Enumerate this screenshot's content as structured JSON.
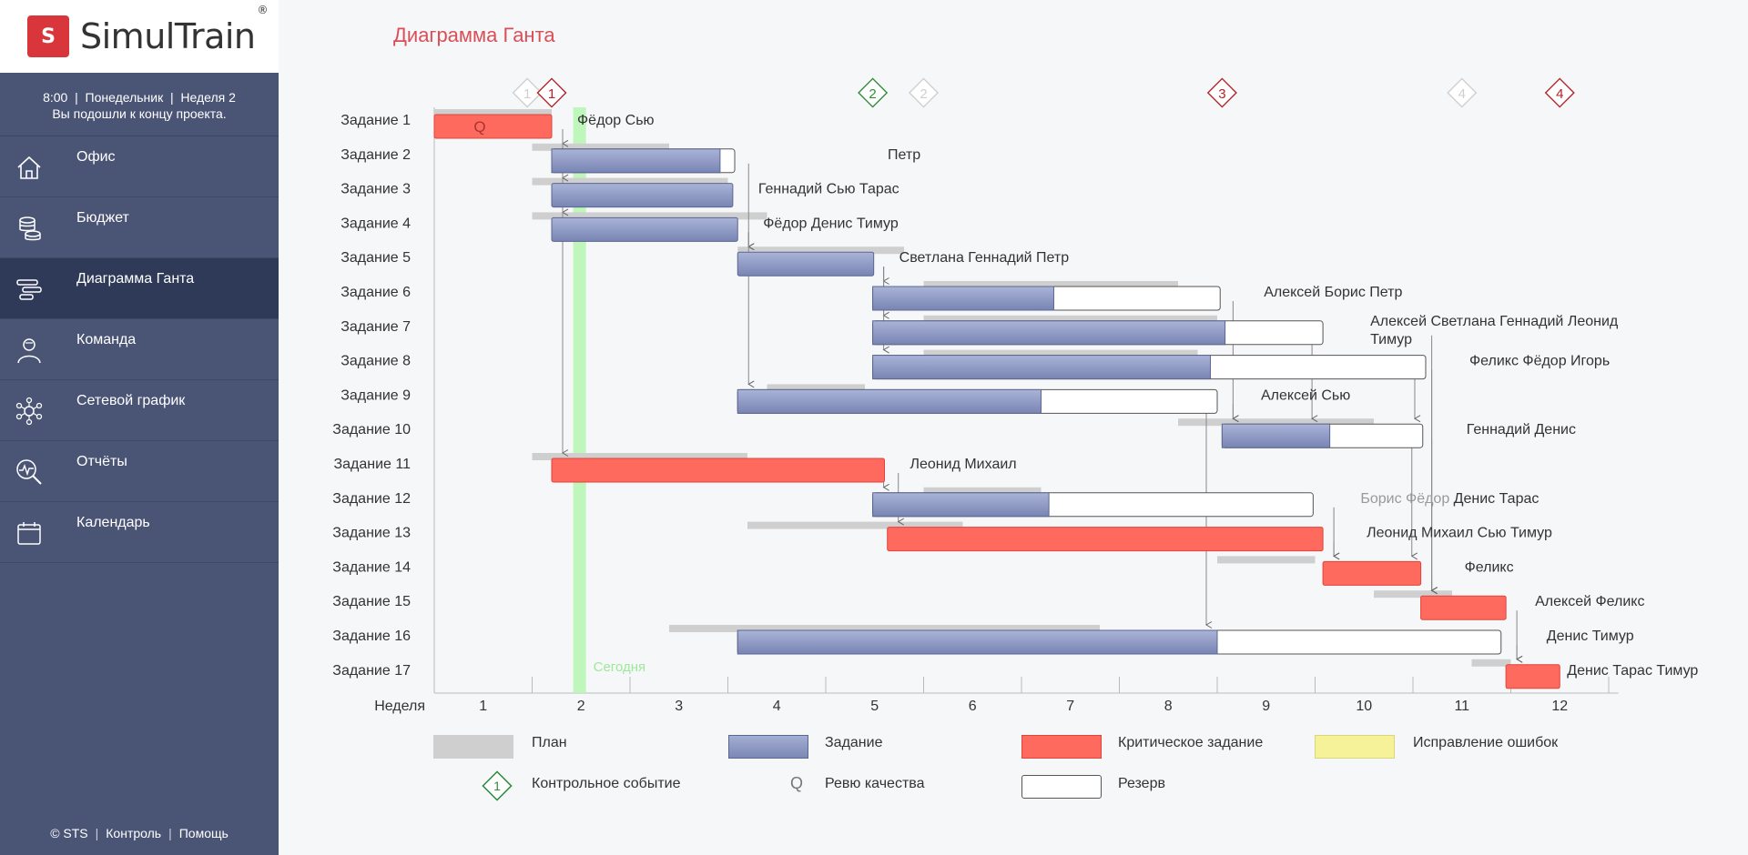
{
  "app": {
    "logo_text": "SimulTrain",
    "logo_reg": "®",
    "logo_mark": "S"
  },
  "status": {
    "line1": "8:00  |  Понедельник  |  Неделя 2",
    "line2": "Вы подошли к концу проекта."
  },
  "nav": [
    {
      "label": "Офис",
      "icon": "home-icon",
      "active": false
    },
    {
      "label": "Бюджет",
      "icon": "coins-icon",
      "active": false
    },
    {
      "label": "Диаграмма Ганта",
      "icon": "gantt-icon",
      "active": true
    },
    {
      "label": "Команда",
      "icon": "team-icon",
      "active": false
    },
    {
      "label": "Сетевой график",
      "icon": "network-icon",
      "active": false
    },
    {
      "label": "Отчёты",
      "icon": "report-icon",
      "active": false
    },
    {
      "label": "Календарь",
      "icon": "calendar-icon",
      "active": false
    }
  ],
  "footer": {
    "copyright": "© STS",
    "control": "Контроль",
    "help": "Помощь"
  },
  "page_title": "Диаграмма Ганта",
  "colors": {
    "task": "#8a97c2",
    "critical": "#ff6a5e",
    "reserve": "#ffffff",
    "plan": "#cfcfcf",
    "today": "#b8f5b4",
    "milestone_done": "#2e8b3a",
    "milestone_ghost": "#cfcfcf",
    "milestone_red": "#b3242a",
    "accent": "#d94f57",
    "sidebar": "#4a5475"
  },
  "gantt": {
    "week_label": "Неделя",
    "weeks": [
      "1",
      "2",
      "3",
      "4",
      "5",
      "6",
      "7",
      "8",
      "9",
      "10",
      "11",
      "12"
    ],
    "today_label": "Сегодня",
    "today_week": 1.55,
    "tasks": [
      {
        "name": "Задание 1",
        "start": 0.0,
        "work": 1.2,
        "reserve": 0,
        "critical": true,
        "plan": [
          0.0,
          1.2
        ],
        "people": "Фёдор Сью",
        "quality": true
      },
      {
        "name": "Задание 2",
        "start": 1.2,
        "work": 1.72,
        "reserve": 0.15,
        "critical": false,
        "plan": [
          1.0,
          2.4
        ],
        "people": "Петр"
      },
      {
        "name": "Задание 3",
        "start": 1.2,
        "work": 1.85,
        "reserve": 0,
        "critical": false,
        "plan": [
          1.0,
          3.0
        ],
        "people": "Геннадий Сью Тарас"
      },
      {
        "name": "Задание 4",
        "start": 1.2,
        "work": 1.9,
        "reserve": 0,
        "critical": false,
        "plan": [
          1.0,
          3.4
        ],
        "people": "Фёдор Денис Тимур"
      },
      {
        "name": "Задание 5",
        "start": 3.1,
        "work": 1.39,
        "reserve": 0,
        "critical": false,
        "plan": [
          3.1,
          4.8
        ],
        "people": "Светлана Геннадий Петр"
      },
      {
        "name": "Задание 6",
        "start": 4.48,
        "work": 1.85,
        "reserve": 1.7,
        "critical": false,
        "plan": [
          5.0,
          7.6
        ],
        "people": "Алексей Борис Петр"
      },
      {
        "name": "Задание 7",
        "start": 4.48,
        "work": 3.6,
        "reserve": 1.0,
        "critical": false,
        "plan": [
          5.0,
          8.0
        ],
        "people": "Алексей Светлана Геннадий Леонид Тимур"
      },
      {
        "name": "Задание 8",
        "start": 4.48,
        "work": 3.45,
        "reserve": 2.2,
        "critical": false,
        "plan": [
          5.0,
          7.8
        ],
        "people": "Феликс Фёдор Игорь"
      },
      {
        "name": "Задание 9",
        "start": 3.1,
        "work": 3.1,
        "reserve": 1.8,
        "critical": false,
        "plan": [
          3.4,
          4.4
        ],
        "people": "Алексей Сью"
      },
      {
        "name": "Задание 10",
        "start": 8.05,
        "work": 1.1,
        "reserve": 0.95,
        "critical": false,
        "plan": [
          7.6,
          9.6
        ],
        "people": "Геннадий Денис"
      },
      {
        "name": "Задание 11",
        "start": 1.2,
        "work": 3.4,
        "reserve": 0,
        "critical": true,
        "plan": [
          1.0,
          3.2
        ],
        "people": "Леонид Михаил"
      },
      {
        "name": "Задание 12",
        "start": 4.48,
        "work": 1.8,
        "reserve": 2.7,
        "critical": false,
        "plan": [
          5.0,
          6.2
        ],
        "people": "Борис Фёдор Денис Тарас",
        "people_faded": "Борис Фёдор"
      },
      {
        "name": "Задание 13",
        "start": 4.63,
        "work": 4.45,
        "reserve": 0,
        "critical": true,
        "plan": [
          3.2,
          5.4
        ],
        "people": "Леонид Михаил Сью Тимур"
      },
      {
        "name": "Задание 14",
        "start": 9.08,
        "work": 1.0,
        "reserve": 0,
        "critical": true,
        "plan": [
          8.0,
          9.0
        ],
        "people": "Феликс"
      },
      {
        "name": "Задание 15",
        "start": 10.08,
        "work": 0.87,
        "reserve": 0,
        "critical": true,
        "plan": [
          9.6,
          10.4
        ],
        "people": "Алексей Феликс"
      },
      {
        "name": "Задание 16",
        "start": 3.1,
        "work": 4.9,
        "reserve": 2.9,
        "critical": false,
        "plan": [
          2.4,
          6.8
        ],
        "people": "Денис Тимур"
      },
      {
        "name": "Задание 17",
        "start": 10.95,
        "work": 0.55,
        "reserve": 0,
        "critical": true,
        "plan": [
          10.6,
          11.0
        ],
        "people": "Денис Тарас Тимур"
      }
    ],
    "milestones": [
      {
        "label": "1",
        "week": 0.95,
        "style": "ghost"
      },
      {
        "label": "1",
        "week": 1.2,
        "style": "red"
      },
      {
        "label": "2",
        "week": 4.48,
        "style": "done"
      },
      {
        "label": "2",
        "week": 5.0,
        "style": "ghost"
      },
      {
        "label": "3",
        "week": 8.05,
        "style": "red"
      },
      {
        "label": "4",
        "week": 10.5,
        "style": "ghost"
      },
      {
        "label": "4",
        "week": 11.5,
        "style": "red"
      }
    ]
  },
  "legend": {
    "plan": "План",
    "task": "Задание",
    "critical": "Критическое задание",
    "fix": "Исправление ошибок",
    "milestone": "Контрольное событие",
    "milestone_num": "1",
    "quality": "Ревю качества",
    "quality_glyph": "Q",
    "reserve": "Резерв"
  }
}
